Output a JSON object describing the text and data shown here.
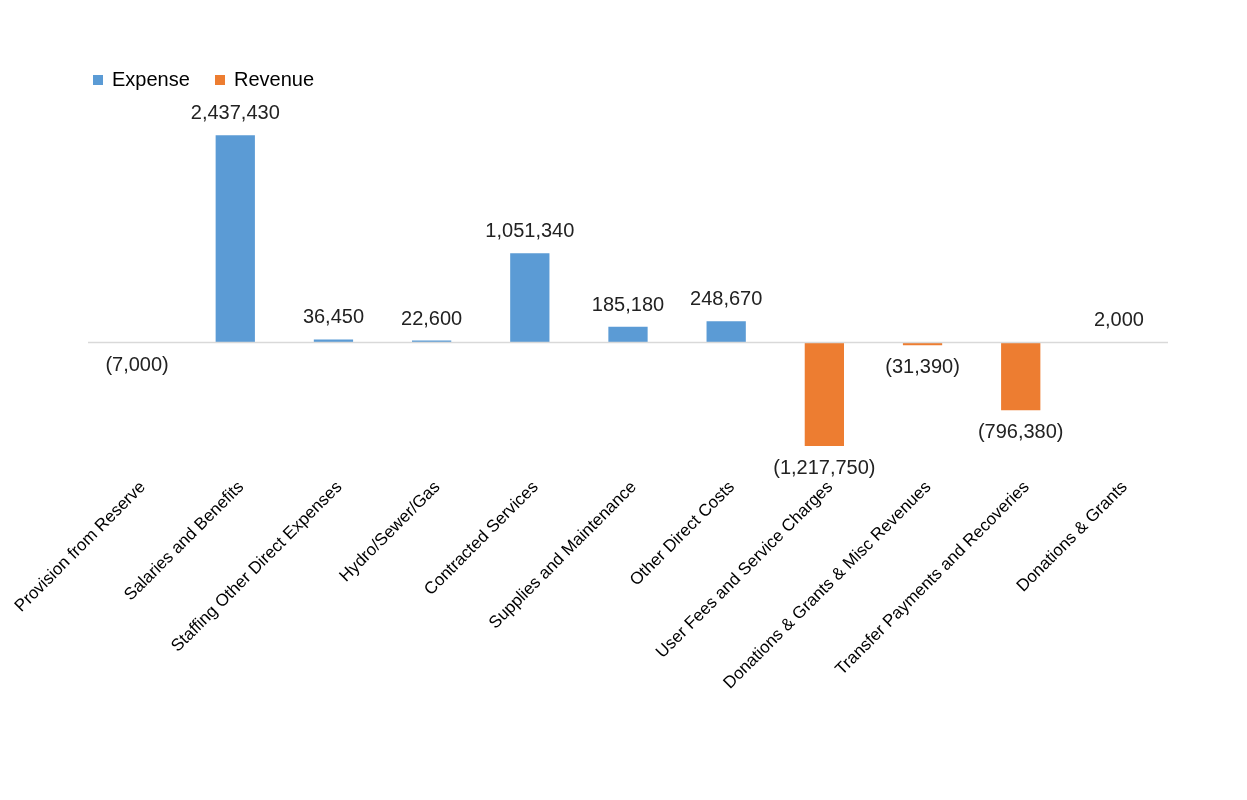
{
  "chart_data": {
    "type": "bar",
    "categories": [
      "Provision from Reserve",
      "Salaries and Benefits",
      "Staffing Other Direct Expenses",
      "Hydro/Sewer/Gas",
      "Contracted Services",
      "Supplies and Maintenance",
      "Other Direct Costs",
      "User Fees and Service Charges",
      "Donations & Grants & Misc Revenues",
      "Transfer Payments and Recoveries",
      "Donations & Grants"
    ],
    "series": [
      {
        "name": "Expense",
        "color": "#5b9bd5",
        "values": [
          -7000,
          2437430,
          36450,
          22600,
          1051340,
          185180,
          248670,
          null,
          null,
          null,
          2000
        ],
        "value_labels": [
          "(7,000)",
          "2,437,430",
          "36,450",
          "22,600",
          "1,051,340",
          "185,180",
          "248,670",
          null,
          null,
          null,
          "2,000"
        ]
      },
      {
        "name": "Revenue",
        "color": "#ed7d31",
        "values": [
          null,
          null,
          null,
          null,
          null,
          null,
          null,
          -1217750,
          -31390,
          -796380,
          null
        ],
        "value_labels": [
          null,
          null,
          null,
          null,
          null,
          null,
          null,
          "(1,217,750)",
          "(31,390)",
          "(796,380)",
          null
        ]
      }
    ],
    "legend": "top",
    "grid": false
  }
}
